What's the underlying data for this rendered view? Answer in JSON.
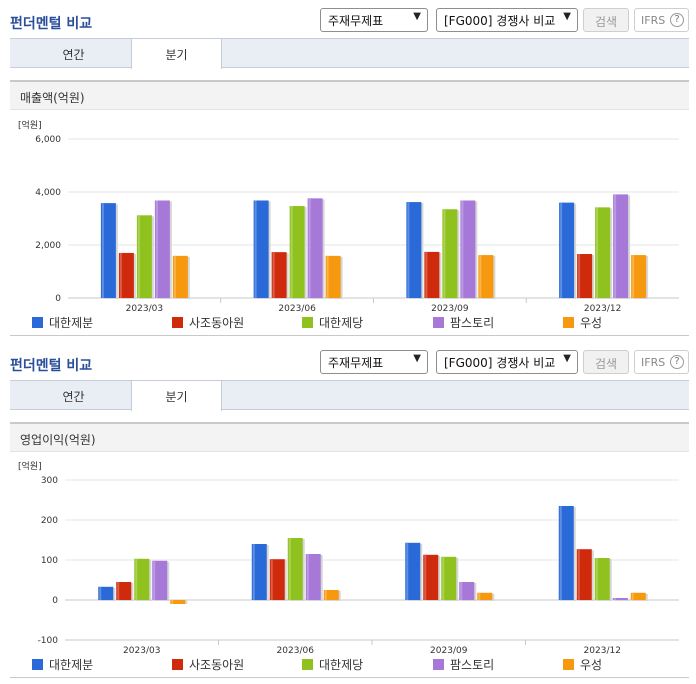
{
  "sections": [
    {
      "title": "펀더멘털 비교",
      "select_a": "주재무제표",
      "select_b": "[FG000] 경쟁사 비교",
      "search_label": "검색",
      "ifrs_label": "IFRS",
      "help_glyph": "?",
      "tabs": [
        "연간",
        "분기"
      ],
      "chart_heading": "매출액(억원)"
    },
    {
      "title": "펀더멘털 비교",
      "select_a": "주재무제표",
      "select_b": "[FG000] 경쟁사 비교",
      "search_label": "검색",
      "ifrs_label": "IFRS",
      "help_glyph": "?",
      "tabs": [
        "연간",
        "분기"
      ],
      "chart_heading": "영업이익(억원)"
    }
  ],
  "chart_data": [
    {
      "type": "bar",
      "title": "매출액(억원)",
      "unit_label": "[억원]",
      "ylim": [
        0,
        6000
      ],
      "yticks": [
        0,
        2000,
        4000,
        6000
      ],
      "ytick_labels": [
        "0",
        "2,000",
        "4,000",
        "6,000"
      ],
      "categories": [
        "2023/03",
        "2023/06",
        "2023/09",
        "2023/12"
      ],
      "legend": "bottom",
      "series": [
        {
          "name": "대한제분",
          "color": "#2a6ad8",
          "values": [
            3580,
            3680,
            3620,
            3600
          ]
        },
        {
          "name": "사조동아원",
          "color": "#cf2a0b",
          "values": [
            1700,
            1730,
            1740,
            1660
          ]
        },
        {
          "name": "대한제당",
          "color": "#8fc21f",
          "values": [
            3120,
            3470,
            3350,
            3420
          ]
        },
        {
          "name": "팜스토리",
          "color": "#a678d8",
          "values": [
            3680,
            3760,
            3680,
            3910
          ]
        },
        {
          "name": "우성",
          "color": "#f7990f",
          "values": [
            1590,
            1590,
            1620,
            1620
          ]
        }
      ]
    },
    {
      "type": "bar",
      "title": "영업이익(억원)",
      "unit_label": "[억원]",
      "ylim": [
        -100,
        300
      ],
      "yticks": [
        -100,
        0,
        100,
        200,
        300
      ],
      "ytick_labels": [
        "-100",
        "0",
        "100",
        "200",
        "300"
      ],
      "categories": [
        "2023/03",
        "2023/06",
        "2023/09",
        "2023/12"
      ],
      "legend": "bottom",
      "series": [
        {
          "name": "대한제분",
          "color": "#2a6ad8",
          "values": [
            33,
            140,
            143,
            235
          ]
        },
        {
          "name": "사조동아원",
          "color": "#cf2a0b",
          "values": [
            45,
            102,
            113,
            127
          ]
        },
        {
          "name": "대한제당",
          "color": "#8fc21f",
          "values": [
            103,
            155,
            108,
            105
          ]
        },
        {
          "name": "팜스토리",
          "color": "#a678d8",
          "values": [
            98,
            115,
            45,
            5
          ]
        },
        {
          "name": "우성",
          "color": "#f7990f",
          "values": [
            -10,
            25,
            18,
            18
          ]
        }
      ]
    }
  ]
}
